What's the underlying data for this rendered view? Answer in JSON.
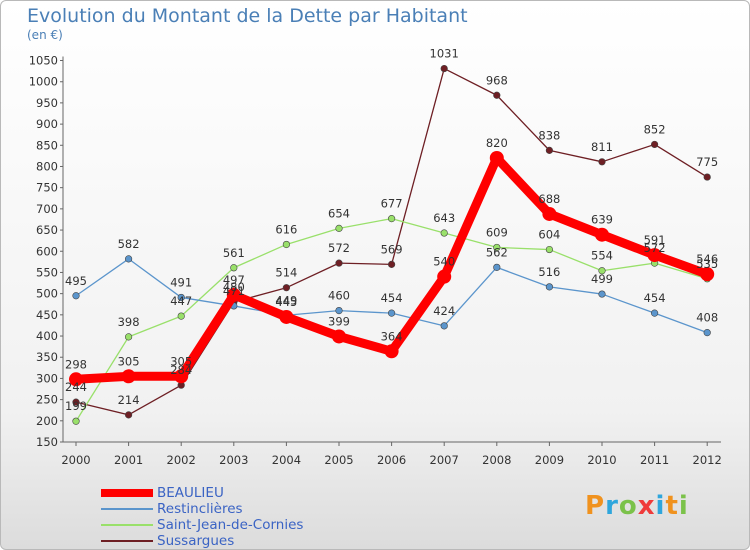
{
  "title": "Evolution du Montant de la Dette par Habitant",
  "unit": "(en €)",
  "logo": "Proxiti",
  "chart_data": {
    "type": "line",
    "x": [
      "2000",
      "2001",
      "2002",
      "2003",
      "2004",
      "2005",
      "2006",
      "2007",
      "2008",
      "2009",
      "2010",
      "2011",
      "2012"
    ],
    "ylim": [
      150,
      1050
    ],
    "yticks": [
      150,
      200,
      250,
      300,
      350,
      400,
      450,
      500,
      550,
      600,
      650,
      700,
      750,
      800,
      850,
      900,
      950,
      1000,
      1050
    ],
    "grid": false,
    "legend": "bottom-left",
    "series": [
      {
        "name": "Sussargues",
        "color": "#6e1f24",
        "values": [
          244,
          214,
          284,
          480,
          514,
          572,
          569,
          1031,
          968,
          838,
          811,
          852,
          775
        ]
      },
      {
        "name": "Saint-Jean-de-Cornies",
        "color": "#99e06a",
        "values": [
          199,
          398,
          447,
          561,
          616,
          654,
          677,
          643,
          609,
          604,
          554,
          572,
          535
        ]
      },
      {
        "name": "Restinclières",
        "color": "#5b95cc",
        "values": [
          495,
          582,
          491,
          471,
          449,
          460,
          454,
          424,
          562,
          516,
          499,
          454,
          408
        ]
      },
      {
        "name": "BEAULIEU",
        "color": "#ff0000",
        "values": [
          298,
          305,
          305,
          497,
          445,
          399,
          364,
          540,
          820,
          688,
          639,
          591,
          546
        ]
      }
    ],
    "legend_order": [
      "BEAULIEU",
      "Restinclières",
      "Saint-Jean-de-Cornies",
      "Sussargues"
    ]
  }
}
